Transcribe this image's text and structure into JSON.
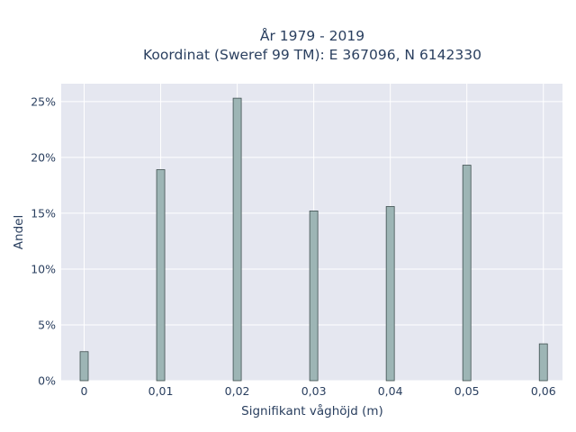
{
  "chart_data": {
    "type": "bar",
    "title_line1": "År 1979 - 2019",
    "title_line2": "Koordinat (Sweref 99 TM): E 367096, N 6142330",
    "xlabel": "Signifikant våghöjd (m)",
    "ylabel": "Andel",
    "x": [
      0,
      0.01,
      0.02,
      0.03,
      0.04,
      0.05,
      0.06
    ],
    "x_tick_labels": [
      "0",
      "0,01",
      "0,02",
      "0,03",
      "0,04",
      "0,05",
      "0,06"
    ],
    "values": [
      2.6,
      18.9,
      25.3,
      15.2,
      15.6,
      19.3,
      3.3
    ],
    "y_tick_values": [
      0,
      5,
      10,
      15,
      20,
      25
    ],
    "y_tick_labels": [
      "0%",
      "5%",
      "10%",
      "15%",
      "20%",
      "25%"
    ],
    "xlim": [
      -0.003,
      0.0625
    ],
    "ylim": [
      0,
      26.6
    ],
    "grid": true,
    "colors": {
      "plot_background": "#e5e7f0",
      "bar_fill": "#9db5b5",
      "bar_stroke": "#3f4f4f",
      "grid": "#ffffff",
      "text": "#2a3f5f"
    }
  }
}
